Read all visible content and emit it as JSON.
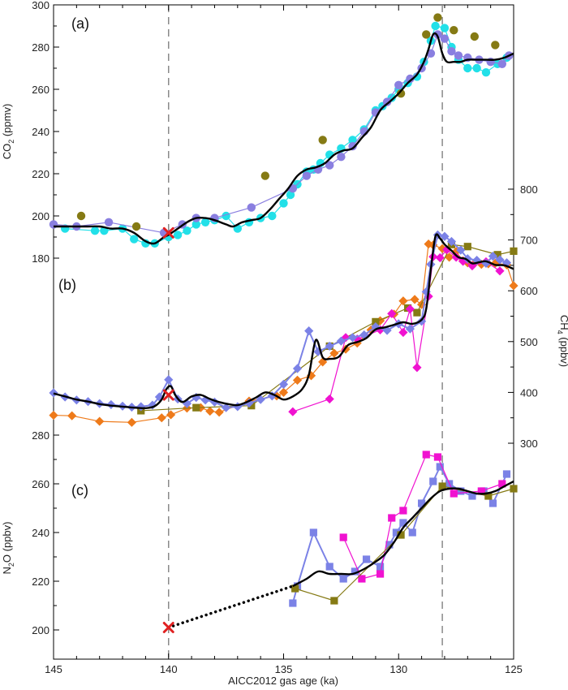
{
  "figure": {
    "xlabel": "AICC2012 gas age (ka)",
    "x_range": [
      145,
      125
    ],
    "x_ticks": [
      "145",
      "140",
      "135",
      "130",
      "125"
    ],
    "dashed_lines_x": [
      140,
      128.1
    ],
    "colors": {
      "fit": "#000000",
      "marker_x": "#e02020",
      "purple": "#8a7fe0",
      "cyan": "#22e0e8",
      "olive": "#857a14",
      "orange": "#ee7a1a",
      "magenta": "#f012d0",
      "slate": "#7b82e6"
    }
  },
  "chart_data": [
    {
      "type": "scatter",
      "panel_label": "(a)",
      "ylabel_main": "CO",
      "ylabel_sub": "2",
      "ylabel_unit": " (ppmv)",
      "ylim": [
        170,
        300
      ],
      "yticks": [
        "180",
        "200",
        "220",
        "240",
        "260",
        "280",
        "300"
      ],
      "series": [
        {
          "color": "cyan",
          "marker": "circle",
          "line": true,
          "x": [
            144.5,
            143.2,
            142.8,
            142.0,
            141.5,
            141.0,
            140.6,
            140.0,
            139.6,
            139.2,
            138.8,
            138.4,
            138.0,
            137.5,
            137.0,
            136.5,
            136.0,
            135.5,
            135.0,
            134.7,
            134.4,
            134.0,
            133.7,
            133.4,
            133.0,
            132.5,
            132.0,
            131.5,
            131.0,
            130.7,
            130.3,
            130.0,
            129.6,
            129.2,
            128.9,
            128.6,
            128.4,
            128.0,
            127.7,
            127.4,
            127.0,
            126.6,
            126.2,
            125.7,
            125.3
          ],
          "y": [
            194,
            193,
            193,
            194,
            189,
            187,
            187,
            190,
            191,
            193,
            196,
            197,
            198,
            200,
            194,
            197,
            199,
            200,
            206,
            210,
            215,
            221,
            222,
            225,
            229,
            232,
            236,
            241,
            250,
            252,
            256,
            260,
            263,
            266,
            273,
            283,
            290,
            289,
            280,
            274,
            270,
            270,
            268,
            272,
            275
          ]
        },
        {
          "color": "purple",
          "marker": "circle",
          "line": true,
          "x": [
            145,
            144,
            142.6,
            140.2,
            139.4,
            138.8,
            138.0,
            136.4,
            134.6,
            134.0,
            133.5,
            133.0,
            132.5,
            132.0,
            131.5,
            131.0,
            130.5,
            130.0,
            129.5,
            129.0,
            128.6,
            128.3,
            128.0,
            127.7,
            127.4,
            127.0,
            126.5,
            126.0,
            125.5,
            125.2
          ],
          "y": [
            196,
            195,
            197,
            192,
            196,
            199,
            199,
            204,
            213,
            219,
            222,
            224,
            228,
            233,
            240,
            249,
            254,
            262,
            265,
            270,
            277,
            286,
            284,
            278,
            276,
            275,
            274,
            273,
            272,
            276
          ]
        },
        {
          "color": "olive",
          "marker": "circle",
          "line": false,
          "x": [
            143.8,
            141.4,
            135.8,
            133.3,
            129.9,
            128.8,
            128.3,
            127.6,
            126.7,
            125.8
          ],
          "y": [
            200,
            195,
            219,
            236,
            258,
            286,
            294,
            288,
            285,
            281
          ]
        },
        {
          "color": "fit",
          "marker": "none",
          "line": true,
          "smooth": true,
          "x": [
            145,
            144.3,
            143.6,
            143.0,
            142.5,
            142.0,
            141.5,
            141.0,
            140.6,
            140.2,
            140.0,
            139.6,
            139.2,
            138.8,
            138.4,
            138.0,
            137.5,
            137.2,
            136.8,
            136.4,
            136.0,
            135.6,
            135.2,
            134.8,
            134.4,
            134.0,
            133.6,
            133.2,
            132.8,
            132.4,
            132.0,
            131.6,
            131.2,
            130.8,
            130.4,
            130.0,
            129.6,
            129.2,
            128.9,
            128.7,
            128.5,
            128.3,
            128.1,
            127.9,
            127.6,
            127.3,
            127.0,
            126.6,
            126.2,
            125.8,
            125.4,
            125
          ],
          "y": [
            195,
            195,
            195,
            195,
            194,
            194,
            192,
            188,
            187,
            190,
            191,
            194,
            197,
            199,
            199,
            198,
            196,
            195,
            197,
            198,
            199,
            203,
            208,
            213,
            219,
            222,
            223,
            225,
            229,
            231,
            232,
            237,
            242,
            250,
            254,
            258,
            263,
            267,
            273,
            279,
            286,
            285,
            277,
            273,
            273,
            273,
            274,
            274,
            274,
            274,
            275,
            277
          ]
        },
        {
          "color": "marker_x",
          "marker": "x",
          "line": false,
          "x": [
            140.0
          ],
          "y": [
            192
          ]
        }
      ]
    },
    {
      "type": "scatter",
      "panel_label": "(b)",
      "ylabel_main": "CH",
      "ylabel_sub": "4",
      "ylabel_unit": " (ppbv)",
      "ylim": [
        240,
        850
      ],
      "yticks": [
        "300",
        "400",
        "500",
        "600",
        "700",
        "800"
      ],
      "series": [
        {
          "color": "orange",
          "marker": "diamond",
          "line": true,
          "x": [
            145,
            144.2,
            143.0,
            141.6,
            140.3,
            139.9,
            139.2,
            138.6,
            138.2,
            137.8,
            136.5,
            135.3,
            135.0,
            134.4,
            133.8,
            133.3,
            132.8,
            132.3,
            131.8,
            131.2,
            130.8,
            130.2,
            129.8,
            129.3,
            129.0,
            128.7,
            128.5,
            128.1,
            127.8,
            127.5,
            127.2,
            127.0,
            126.7,
            126.4,
            126.1,
            125.8,
            125.3,
            125
          ],
          "y": [
            355,
            354,
            343,
            341,
            350,
            356,
            369,
            370,
            363,
            361,
            383,
            393,
            400,
            424,
            433,
            460,
            477,
            485,
            497,
            523,
            541,
            554,
            580,
            583,
            573,
            692,
            690,
            683,
            666,
            677,
            659,
            655,
            654,
            652,
            653,
            654,
            651,
            610
          ]
        },
        {
          "color": "olive",
          "marker": "square",
          "line": true,
          "x": [
            141.2,
            138.8,
            136.4,
            133.0,
            131.0,
            129.6,
            129.2,
            127.7,
            127.0,
            125.7,
            125.0
          ],
          "y": [
            364,
            370,
            374,
            491,
            539,
            566,
            557,
            691,
            687,
            671,
            678
          ]
        },
        {
          "color": "magenta",
          "marker": "diamond",
          "line": true,
          "x": [
            134.6,
            133.0,
            132.3,
            131.8,
            130.8,
            130.3,
            129.8,
            129.5,
            129.2,
            128.7,
            128.5,
            128.2,
            127.9,
            127.5,
            127.2,
            126.8,
            126.2,
            125.6
          ],
          "y": [
            362,
            387,
            508,
            505,
            523,
            555,
            518,
            564,
            449,
            589,
            667,
            665,
            681,
            666,
            658,
            649,
            657,
            639
          ]
        },
        {
          "color": "slate",
          "marker": "diamond",
          "line": true,
          "x": [
            145,
            144.5,
            144.0,
            143.5,
            143.0,
            142.5,
            142.0,
            141.6,
            141.2,
            140.7,
            140.4,
            140.0,
            139.6,
            139.2,
            138.8,
            138.4,
            138.0,
            137.5,
            137.0,
            136.5,
            136.0,
            135.5,
            135.0,
            134.4,
            133.9,
            133.5,
            133.0,
            132.5,
            132.0,
            131.5,
            131.0,
            130.5,
            130.0,
            129.5,
            129.0,
            128.8,
            128.6,
            128.3,
            128.0,
            127.7,
            127.3,
            127.0,
            126.6,
            126.2,
            125.9,
            125.6,
            125.3
          ],
          "y": [
            399,
            391,
            385,
            382,
            378,
            376,
            373,
            371,
            372,
            375,
            391,
            425,
            387,
            378,
            390,
            385,
            381,
            370,
            372,
            379,
            386,
            393,
            416,
            447,
            521,
            480,
            491,
            501,
            508,
            513,
            529,
            522,
            535,
            525,
            540,
            598,
            652,
            710,
            707,
            697,
            680,
            663,
            660,
            654,
            668,
            661,
            655
          ]
        },
        {
          "color": "fit",
          "marker": "none",
          "line": true,
          "smooth": true,
          "x": [
            145,
            144.5,
            144.0,
            143.5,
            143.0,
            142.5,
            142.0,
            141.5,
            141.0,
            140.6,
            140.3,
            140.1,
            139.9,
            139.7,
            139.4,
            139.0,
            138.6,
            138.2,
            137.8,
            137.4,
            137.0,
            136.6,
            136.2,
            135.8,
            135.4,
            135.0,
            134.6,
            134.2,
            133.9,
            133.6,
            133.3,
            133.0,
            132.6,
            132.2,
            131.8,
            131.4,
            131.0,
            130.6,
            130.2,
            129.8,
            129.4,
            129.0,
            128.8,
            128.6,
            128.4,
            128.2,
            128.0,
            127.7,
            127.4,
            127.1,
            126.8,
            126.5,
            126.2,
            125.8,
            125.4,
            125
          ],
          "y": [
            398,
            392,
            386,
            382,
            377,
            374,
            372,
            370,
            369,
            373,
            386,
            406,
            412,
            394,
            381,
            392,
            395,
            387,
            381,
            377,
            375,
            381,
            390,
            400,
            395,
            386,
            392,
            406,
            435,
            503,
            469,
            466,
            470,
            493,
            499,
            507,
            524,
            528,
            533,
            538,
            535,
            543,
            565,
            641,
            707,
            703,
            691,
            679,
            666,
            663,
            654,
            656,
            658,
            651,
            650,
            643
          ]
        },
        {
          "color": "marker_x",
          "marker": "x",
          "line": false,
          "x": [
            140.0
          ],
          "y": [
            395
          ]
        }
      ]
    },
    {
      "type": "scatter",
      "panel_label": "(c)",
      "ylabel_main": "N",
      "ylabel_sub": "2",
      "ylabel_unit": "O (ppbv)",
      "ylim": [
        186,
        301
      ],
      "yticks": [
        "200",
        "220",
        "240",
        "260",
        "280"
      ],
      "series": [
        {
          "color": "slate",
          "marker": "square",
          "line": true,
          "x": [
            134.6,
            134.4,
            133.7,
            133.0,
            132.4,
            131.9,
            131.4,
            130.8,
            130.4,
            130.1,
            129.8,
            129.4,
            129.0,
            128.5,
            128.2,
            127.8,
            127.3,
            126.8,
            126.3,
            125.9,
            125.3
          ],
          "y": [
            211,
            218,
            240,
            226,
            221,
            224,
            229,
            226,
            235,
            240,
            244,
            240,
            252,
            261,
            267,
            260,
            257,
            255,
            257,
            252,
            264
          ]
        },
        {
          "color": "magenta",
          "marker": "square",
          "line": true,
          "x": [
            132.4,
            131.6,
            130.8,
            130.3,
            129.8,
            128.8,
            128.3,
            127.6,
            126.4,
            125.5
          ],
          "y": [
            238,
            221,
            223,
            246,
            249,
            272,
            271,
            256,
            257,
            260
          ]
        },
        {
          "color": "olive",
          "marker": "square",
          "line": true,
          "x": [
            134.5,
            132.8,
            129.9,
            128.1,
            126.1,
            125.0
          ],
          "y": [
            217,
            212,
            239,
            259,
            255,
            258
          ]
        },
        {
          "color": "fit",
          "marker": "none",
          "line": true,
          "smooth": true,
          "x": [
            134.6,
            134.0,
            133.5,
            133.0,
            132.5,
            132.0,
            131.5,
            131.0,
            130.6,
            130.2,
            129.8,
            129.4,
            129.0,
            128.6,
            128.2,
            127.8,
            127.4,
            127.0,
            126.6,
            126.2,
            125.8,
            125.4,
            125.0
          ],
          "y": [
            218,
            221,
            224,
            223,
            223,
            223,
            225,
            228,
            231,
            236,
            242,
            246,
            250,
            254,
            257,
            258,
            258,
            257,
            256,
            256,
            257,
            259,
            261
          ]
        },
        {
          "color": "fit",
          "marker": "none",
          "line": true,
          "dotted": true,
          "x": [
            140.0,
            134.6
          ],
          "y": [
            201,
            218
          ]
        },
        {
          "color": "marker_x",
          "marker": "x",
          "line": false,
          "x": [
            140.0
          ],
          "y": [
            201
          ]
        }
      ]
    }
  ]
}
